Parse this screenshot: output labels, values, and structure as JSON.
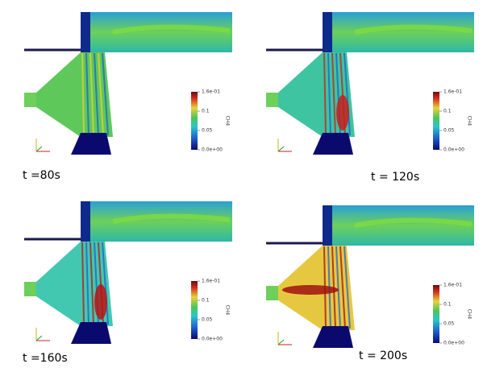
{
  "panels": [
    {
      "label": "t =80s",
      "colorbar": {
        "title": "CH4",
        "ticks": [
          "1.6e-01",
          "0.1",
          "0.05",
          "0.0e+00"
        ]
      }
    },
    {
      "label": "t = 120s",
      "colorbar": {
        "title": "CH4",
        "ticks": [
          "1.6e-01",
          "0.1",
          "0.05",
          "0.0e+00"
        ]
      }
    },
    {
      "label": "t =160s",
      "colorbar": {
        "title": "CH4",
        "ticks": [
          "1.6e-01",
          "0.1",
          "0.05",
          "0.0e+00"
        ]
      }
    },
    {
      "label": "t = 200s",
      "colorbar": {
        "title": "CH4",
        "ticks": [
          "1.6e-01",
          "0.1",
          "0.05",
          "0.0e+00"
        ]
      }
    }
  ]
}
